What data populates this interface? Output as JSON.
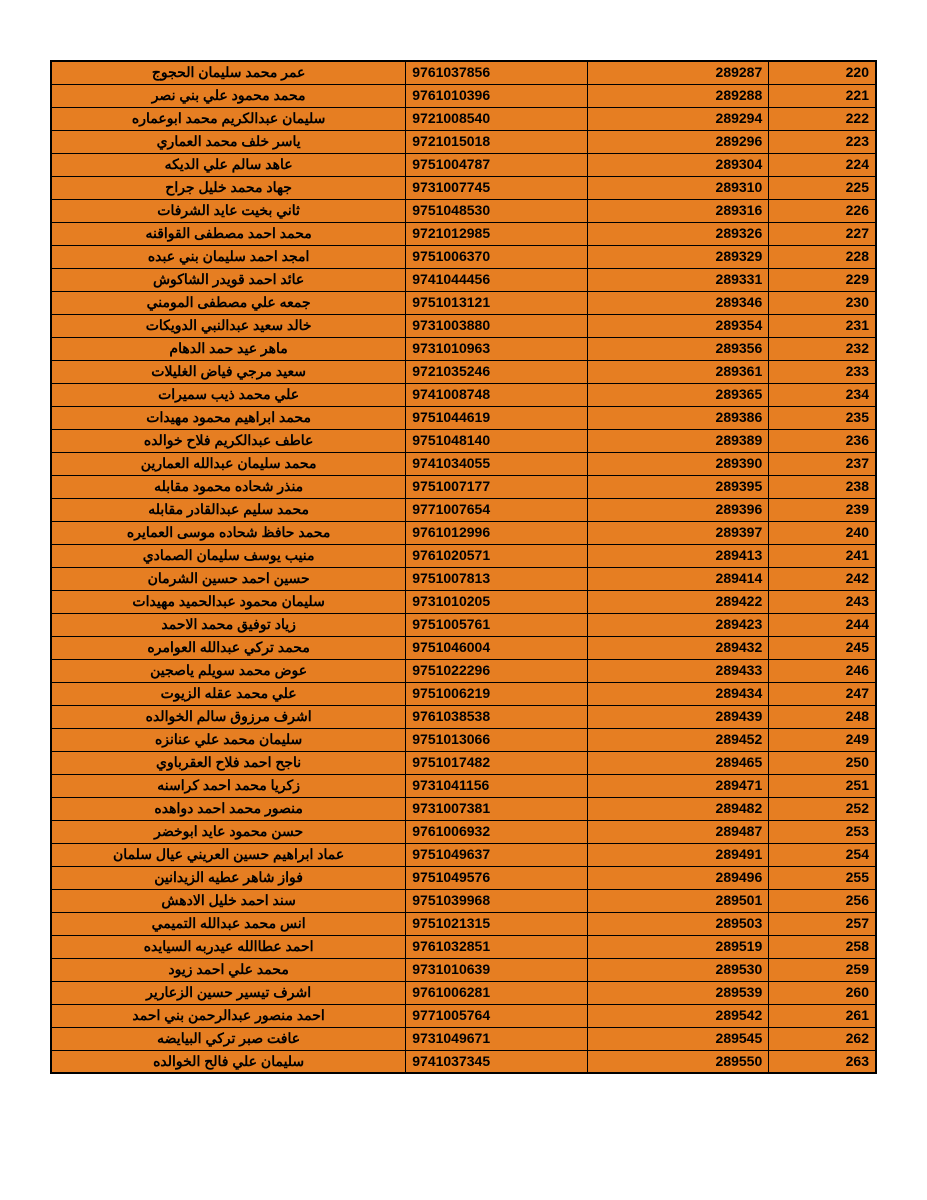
{
  "table": {
    "background_color": "#e67e22",
    "border_color": "#000000",
    "text_color": "#000000",
    "font_size": 14,
    "font_weight": "bold",
    "columns": [
      "name",
      "id1",
      "id2",
      "seq"
    ],
    "column_widths": [
      "43%",
      "22%",
      "22%",
      "13%"
    ],
    "column_align": [
      "center",
      "left",
      "right",
      "right"
    ],
    "rows": [
      {
        "name": "عمر محمد سليمان الحجوج",
        "id1": "9761037856",
        "id2": "289287",
        "seq": "220"
      },
      {
        "name": "محمد محمود علي بني نصر",
        "id1": "9761010396",
        "id2": "289288",
        "seq": "221"
      },
      {
        "name": "سليمان عبدالكريم محمد ابوعماره",
        "id1": "9721008540",
        "id2": "289294",
        "seq": "222"
      },
      {
        "name": "ياسر خلف محمد العماري",
        "id1": "9721015018",
        "id2": "289296",
        "seq": "223"
      },
      {
        "name": "عاهد سالم علي الديكه",
        "id1": "9751004787",
        "id2": "289304",
        "seq": "224"
      },
      {
        "name": "جهاد محمد خليل جراح",
        "id1": "9731007745",
        "id2": "289310",
        "seq": "225"
      },
      {
        "name": "ثاني بخيت عايد الشرفات",
        "id1": "9751048530",
        "id2": "289316",
        "seq": "226"
      },
      {
        "name": "محمد احمد مصطفى القواقنه",
        "id1": "9721012985",
        "id2": "289326",
        "seq": "227"
      },
      {
        "name": "امجد احمد سليمان بني عبده",
        "id1": "9751006370",
        "id2": "289329",
        "seq": "228"
      },
      {
        "name": "عائد احمد قويدر الشاكوش",
        "id1": "9741044456",
        "id2": "289331",
        "seq": "229"
      },
      {
        "name": "جمعه علي مصطفى المومني",
        "id1": "9751013121",
        "id2": "289346",
        "seq": "230"
      },
      {
        "name": "خالد سعيد عبدالنبي الدويكات",
        "id1": "9731003880",
        "id2": "289354",
        "seq": "231"
      },
      {
        "name": "ماهر عيد حمد الدهام",
        "id1": "9731010963",
        "id2": "289356",
        "seq": "232"
      },
      {
        "name": "سعيد مرجي فياض الغليلات",
        "id1": "9721035246",
        "id2": "289361",
        "seq": "233"
      },
      {
        "name": "علي محمد ذيب سميرات",
        "id1": "9741008748",
        "id2": "289365",
        "seq": "234"
      },
      {
        "name": "محمد ابراهيم محمود مهيدات",
        "id1": "9751044619",
        "id2": "289386",
        "seq": "235"
      },
      {
        "name": "عاطف عبدالكريم فلاح خوالده",
        "id1": "9751048140",
        "id2": "289389",
        "seq": "236"
      },
      {
        "name": "محمد سليمان عبدالله العمارين",
        "id1": "9741034055",
        "id2": "289390",
        "seq": "237"
      },
      {
        "name": "منذر شحاده محمود مقابله",
        "id1": "9751007177",
        "id2": "289395",
        "seq": "238"
      },
      {
        "name": "محمد سليم عبدالقادر مقابله",
        "id1": "9771007654",
        "id2": "289396",
        "seq": "239"
      },
      {
        "name": "محمد حافظ شحاده موسى العمايره",
        "id1": "9761012996",
        "id2": "289397",
        "seq": "240"
      },
      {
        "name": "منيب يوسف سليمان الصمادي",
        "id1": "9761020571",
        "id2": "289413",
        "seq": "241"
      },
      {
        "name": "حسين احمد حسين الشرمان",
        "id1": "9751007813",
        "id2": "289414",
        "seq": "242"
      },
      {
        "name": "سليمان محمود عبدالحميد مهيدات",
        "id1": "9731010205",
        "id2": "289422",
        "seq": "243"
      },
      {
        "name": "زياد توفيق محمد الاحمد",
        "id1": "9751005761",
        "id2": "289423",
        "seq": "244"
      },
      {
        "name": "محمد تركي عبدالله العوامره",
        "id1": "9751046004",
        "id2": "289432",
        "seq": "245"
      },
      {
        "name": "عوض محمد سويلم ياصجين",
        "id1": "9751022296",
        "id2": "289433",
        "seq": "246"
      },
      {
        "name": "علي محمد عقله الزيوت",
        "id1": "9751006219",
        "id2": "289434",
        "seq": "247"
      },
      {
        "name": "اشرف مرزوق سالم الخوالده",
        "id1": "9761038538",
        "id2": "289439",
        "seq": "248"
      },
      {
        "name": "سليمان محمد علي عنانزه",
        "id1": "9751013066",
        "id2": "289452",
        "seq": "249"
      },
      {
        "name": "ناجح احمد فلاح العقرباوي",
        "id1": "9751017482",
        "id2": "289465",
        "seq": "250"
      },
      {
        "name": "زكريا محمد احمد كراسنه",
        "id1": "9731041156",
        "id2": "289471",
        "seq": "251"
      },
      {
        "name": "منصور محمد احمد دواهده",
        "id1": "9731007381",
        "id2": "289482",
        "seq": "252"
      },
      {
        "name": "حسن محمود عايد ابوخضر",
        "id1": "9761006932",
        "id2": "289487",
        "seq": "253"
      },
      {
        "name": "عماد ابراهيم حسين العريني عيال سلمان",
        "id1": "9751049637",
        "id2": "289491",
        "seq": "254"
      },
      {
        "name": "فواز شاهر عطيه الزيدانين",
        "id1": "9751049576",
        "id2": "289496",
        "seq": "255"
      },
      {
        "name": "سند احمد خليل الادهش",
        "id1": "9751039968",
        "id2": "289501",
        "seq": "256"
      },
      {
        "name": "انس محمد عبدالله التميمي",
        "id1": "9751021315",
        "id2": "289503",
        "seq": "257"
      },
      {
        "name": "احمد عطاالله عيدربه السيايده",
        "id1": "9761032851",
        "id2": "289519",
        "seq": "258"
      },
      {
        "name": "محمد علي احمد زيود",
        "id1": "9731010639",
        "id2": "289530",
        "seq": "259"
      },
      {
        "name": "اشرف تيسير حسين الزعارير",
        "id1": "9761006281",
        "id2": "289539",
        "seq": "260"
      },
      {
        "name": "احمد منصور عبدالرحمن بني احمد",
        "id1": "9771005764",
        "id2": "289542",
        "seq": "261"
      },
      {
        "name": "عافت صبر تركي البيايضه",
        "id1": "9731049671",
        "id2": "289545",
        "seq": "262"
      },
      {
        "name": "سليمان علي فالح الخوالده",
        "id1": "9741037345",
        "id2": "289550",
        "seq": "263"
      }
    ]
  }
}
